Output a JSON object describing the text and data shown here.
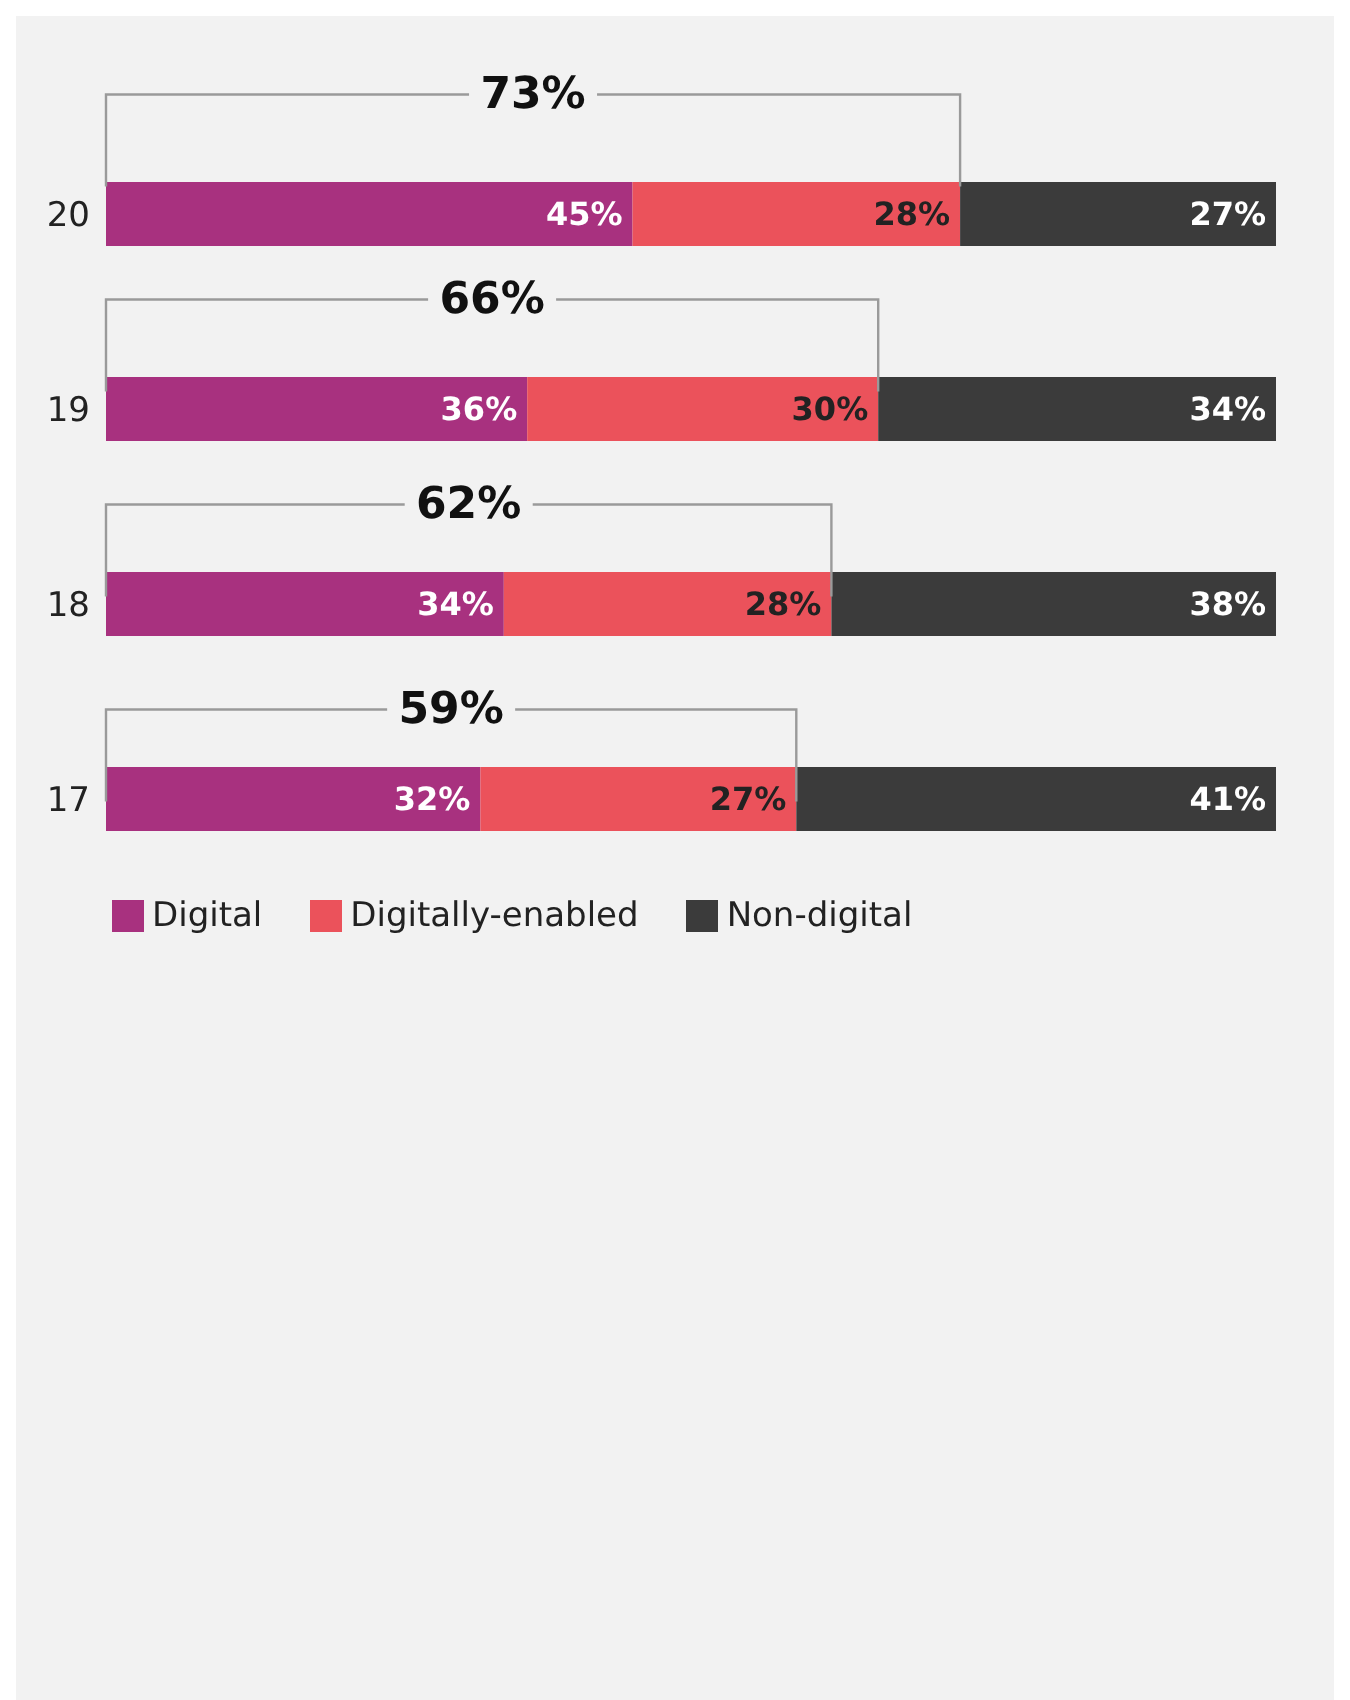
{
  "chart_data": {
    "type": "bar",
    "orientation": "horizontal",
    "stacked": true,
    "categories": [
      "20",
      "19",
      "18",
      "17"
    ],
    "series": [
      {
        "name": "Digital",
        "color": "#a8317f",
        "values": [
          45,
          36,
          34,
          32
        ],
        "value_labels": [
          "45%",
          "36%",
          "34%",
          "32%"
        ]
      },
      {
        "name": "Digitally-enabled",
        "color": "#eb525b",
        "values": [
          28,
          30,
          28,
          27
        ],
        "value_labels": [
          "28%",
          "30%",
          "28%",
          "27%"
        ]
      },
      {
        "name": "Non-digital",
        "color": "#3b3b3b",
        "values": [
          27,
          34,
          38,
          41
        ],
        "value_labels": [
          "27%",
          "34%",
          "38%",
          "41%"
        ]
      }
    ],
    "tick_labels": "y",
    "grid": false,
    "legend": "bottom left",
    "annotations": [
      "73%",
      "66%",
      "62%",
      "59%"
    ]
  }
}
